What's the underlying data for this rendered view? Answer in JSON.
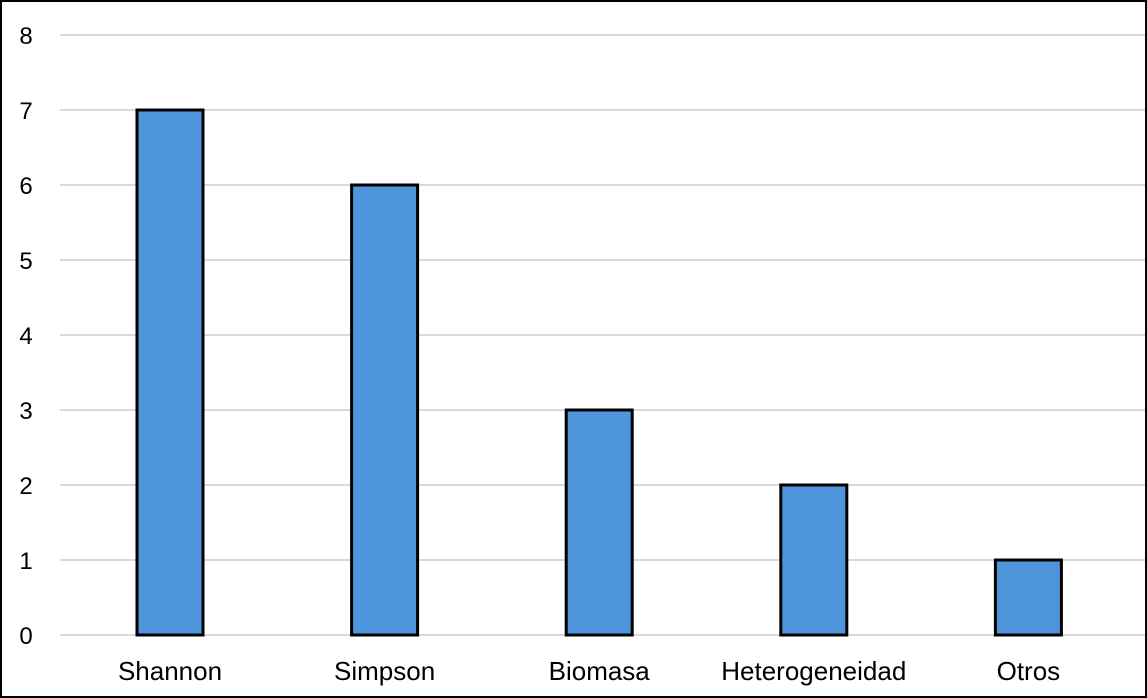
{
  "chart_data": {
    "type": "bar",
    "title": "",
    "xlabel": "",
    "ylabel": "",
    "categories": [
      "Shannon",
      "Simpson",
      "Biomasa",
      "Heterogeneidad",
      "Otros"
    ],
    "values": [
      7,
      6,
      3,
      2,
      1
    ],
    "ylim": [
      0,
      8
    ],
    "yticks": [
      0,
      1,
      2,
      3,
      4,
      5,
      6,
      7,
      8
    ],
    "grid": true,
    "legend": "none",
    "colors": {
      "bar_fill": "#4f95db",
      "bar_stroke": "#000000",
      "grid": "#d9d9d9"
    }
  }
}
